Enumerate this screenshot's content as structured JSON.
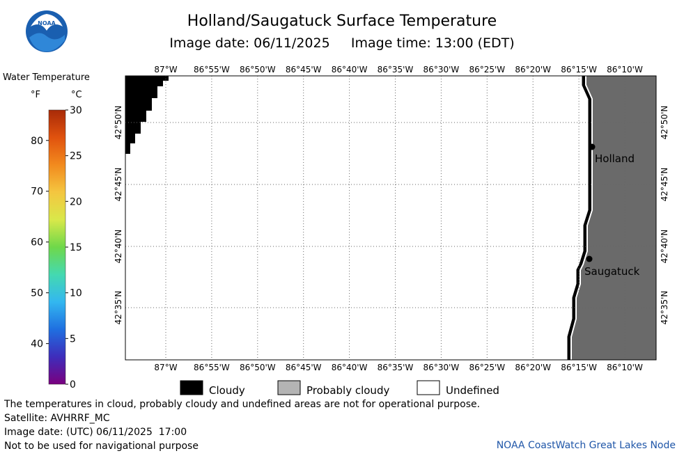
{
  "title": "Holland/Saugatuck Surface Temperature",
  "image_date_label": "Image date: 06/11/2025",
  "image_time_label": "Image time: 13:00 (EDT)",
  "colorbar": {
    "title": "Water Temperature",
    "unit_f": "°F",
    "unit_c": "°C",
    "f_ticks": [
      "40",
      "50",
      "60",
      "70",
      "80"
    ],
    "c_ticks": [
      "0",
      "5",
      "10",
      "15",
      "20",
      "25",
      "30"
    ],
    "colors": [
      "#7a007f",
      "#3e2dbb",
      "#1f6fe0",
      "#33b7f0",
      "#44d9b0",
      "#6fd84a",
      "#d9e84a",
      "#f4c640",
      "#f28a1e",
      "#e0520e",
      "#a82a08"
    ]
  },
  "map": {
    "lon_labels": [
      "87°W",
      "86°55'W",
      "86°50'W",
      "86°45'W",
      "86°40'W",
      "86°35'W",
      "86°30'W",
      "86°25'W",
      "86°20'W",
      "86°15'W",
      "86°10'W"
    ],
    "lat_labels": [
      "42°50'N",
      "42°45'N",
      "42°40'N",
      "42°35'N"
    ],
    "cities": [
      {
        "name": "Holland"
      },
      {
        "name": "Saugatuck"
      }
    ],
    "colors": {
      "land": "#6a6a6a",
      "cloud": "#000000",
      "probably_cloudy": "#b4b4b4",
      "grid": "#666666"
    }
  },
  "key": {
    "cloudy": "Cloudy",
    "probably_cloudy": "Probably cloudy",
    "undefined": "Undefined"
  },
  "notes": {
    "disclaimer": "The temperatures in cloud, probably cloudy and undefined areas are not for operational purpose.",
    "satellite": "Satellite: AVHRRF_MC",
    "utc_date": "Image date: (UTC) 06/11/2025  17:00",
    "navigation": "Not to be used for navigational purpose",
    "credit": "NOAA CoastWatch Great Lakes Node"
  }
}
